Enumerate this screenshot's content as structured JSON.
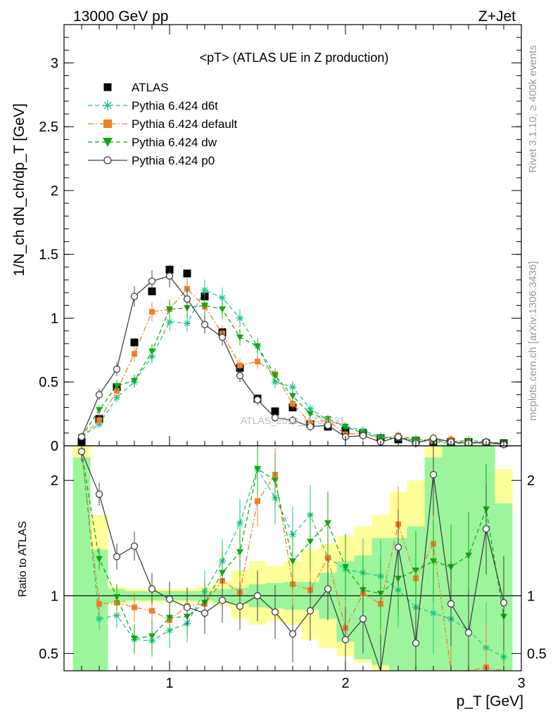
{
  "header": {
    "left_label": "13000 GeV pp",
    "right_label": "Z+Jet",
    "side_label_top": "Rivet 3.1.10, ≥ 400k events",
    "side_label_bottom": "mcplots.cern.ch [arXiv:1306.3436]",
    "watermark": "ATLAS_2019_I1736531"
  },
  "colors": {
    "atlas": "#000000",
    "d6t": "#1fc68a",
    "default": "#f07f2a",
    "dw": "#12a812",
    "p0": "#404040",
    "band_inner": "#9cf59c",
    "band_outer": "#ffff99"
  },
  "chart_data": [
    {
      "type": "scatter",
      "title": "<pT> (ATLAS UE in Z production)",
      "xlabel": "p_T [GeV]",
      "ylabel": "1/N_ch dN_ch/dp_T [GeV]",
      "xlim": [
        0.4,
        3.0
      ],
      "ylim": [
        0.0,
        3.3
      ],
      "yticks": [
        0,
        0.5,
        1,
        1.5,
        2,
        2.5,
        3
      ],
      "ytick_labels": [
        "0",
        "0.5",
        "1",
        "1.5",
        "2",
        "2.5",
        "3"
      ],
      "x": [
        0.5,
        0.6,
        0.7,
        0.8,
        0.9,
        1.0,
        1.1,
        1.2,
        1.3,
        1.4,
        1.5,
        1.6,
        1.7,
        1.8,
        1.9,
        2.0,
        2.1,
        2.2,
        2.3,
        2.4,
        2.5,
        2.6,
        2.7,
        2.8,
        2.9
      ],
      "legend": {
        "position": "top-left"
      },
      "series": [
        {
          "name": "ATLAS",
          "key": "atlas",
          "marker": "square",
          "line": "none",
          "values": [
            0.03,
            0.21,
            0.46,
            0.81,
            1.21,
            1.38,
            1.35,
            1.17,
            0.89,
            0.61,
            0.37,
            0.27,
            0.3,
            0.17,
            0.15,
            0.12,
            0.1,
            0.06,
            0.05,
            0.04,
            0.03,
            0.03,
            0.03,
            0.02,
            0.02
          ]
        },
        {
          "name": "Pythia 6.424 d6t",
          "key": "d6t",
          "marker": "star",
          "line": "dashed",
          "values": [
            0.07,
            0.17,
            0.38,
            0.5,
            0.7,
            0.97,
            0.96,
            1.22,
            1.16,
            1.0,
            0.78,
            0.5,
            0.46,
            0.29,
            0.2,
            0.15,
            0.12,
            0.07,
            0.06,
            0.04,
            0.03,
            0.02,
            0.02,
            0.02,
            0.01
          ]
        },
        {
          "name": "Pythia 6.424 default",
          "key": "default",
          "marker": "square-small",
          "line": "dashdot",
          "values": [
            0.07,
            0.2,
            0.43,
            0.72,
            1.05,
            1.07,
            1.23,
            1.09,
            0.88,
            0.63,
            0.66,
            0.56,
            0.33,
            0.18,
            0.2,
            0.09,
            0.1,
            0.06,
            0.08,
            0.05,
            0.04,
            0.05,
            0.03,
            0.01,
            0.02
          ]
        },
        {
          "name": "Pythia 6.424 dw",
          "key": "dw",
          "marker": "triangle-down",
          "line": "dashed",
          "values": [
            0.07,
            0.28,
            0.47,
            0.51,
            0.74,
            1.07,
            1.08,
            1.1,
            1.07,
            0.85,
            0.78,
            0.55,
            0.39,
            0.25,
            0.21,
            0.15,
            0.1,
            0.06,
            0.06,
            0.05,
            0.04,
            0.03,
            0.04,
            0.03,
            0.02
          ]
        },
        {
          "name": "Pythia 6.424 p0",
          "key": "p0",
          "marker": "circle-open",
          "line": "solid",
          "values": [
            0.07,
            0.4,
            0.6,
            1.17,
            1.29,
            1.33,
            1.15,
            0.95,
            0.85,
            0.55,
            0.36,
            0.22,
            0.2,
            0.15,
            0.16,
            0.07,
            0.08,
            0.03,
            0.07,
            0.02,
            0.06,
            0.03,
            0.02,
            0.03,
            0.01
          ]
        }
      ]
    },
    {
      "type": "scatter",
      "title": "",
      "xlabel": "p_T [GeV]",
      "ylabel": "Ratio to ATLAS",
      "xlim": [
        0.4,
        3.0
      ],
      "ylim": [
        0.35,
        2.3
      ],
      "xticks": [
        1,
        2,
        3
      ],
      "xtick_labels": [
        "1",
        "2",
        "3"
      ],
      "yticks": [
        0.5,
        1,
        2
      ],
      "ytick_labels": [
        "0.5",
        "1",
        "2"
      ],
      "reference_line": 1,
      "x": [
        0.5,
        0.6,
        0.7,
        0.8,
        0.9,
        1.0,
        1.1,
        1.2,
        1.3,
        1.4,
        1.5,
        1.6,
        1.7,
        1.8,
        1.9,
        2.0,
        2.1,
        2.2,
        2.3,
        2.4,
        2.5,
        2.6,
        2.7,
        2.8,
        2.9
      ],
      "bands": {
        "inner_lo": [
          0.3,
          0.3,
          0.94,
          0.96,
          0.96,
          0.96,
          0.96,
          0.96,
          0.94,
          0.93,
          0.9,
          0.89,
          0.88,
          0.88,
          0.8,
          0.6,
          0.45,
          0.4,
          0.35,
          0.35,
          0.35,
          0.3,
          0.3,
          0.3,
          0.3
        ],
        "inner_hi": [
          2.2,
          1.4,
          1.06,
          1.04,
          1.04,
          1.04,
          1.04,
          1.04,
          1.06,
          1.07,
          1.1,
          1.11,
          1.12,
          1.12,
          1.2,
          1.3,
          1.35,
          1.5,
          1.5,
          1.6,
          2.2,
          2.3,
          2.3,
          2.3,
          1.8
        ],
        "outer_lo": [
          0.3,
          0.6,
          0.92,
          0.94,
          0.94,
          0.94,
          0.94,
          0.94,
          0.92,
          0.8,
          0.75,
          0.78,
          0.75,
          0.62,
          0.55,
          0.48,
          0.42,
          0.35,
          0.3,
          0.3,
          0.3,
          0.3,
          0.3,
          0.3,
          0.3
        ],
        "outer_hi": [
          2.3,
          1.7,
          1.08,
          1.06,
          1.06,
          1.06,
          1.06,
          1.08,
          1.12,
          1.22,
          1.3,
          1.26,
          1.3,
          1.4,
          1.45,
          1.52,
          1.6,
          1.7,
          1.9,
          2.0,
          2.3,
          2.3,
          2.3,
          2.3,
          2.1
        ]
      },
      "series": [
        {
          "name": "Pythia 6.424 d6t",
          "key": "d6t",
          "values": [
            2.25,
            0.8,
            0.83,
            0.62,
            0.61,
            0.7,
            0.76,
            1.04,
            1.3,
            1.63,
            2.1,
            1.85,
            1.53,
            1.7,
            1.33,
            1.23,
            1.2,
            1.17,
            1.05,
            0.9,
            0.85,
            0.8,
            0.7,
            0.55,
            0.47
          ]
        },
        {
          "name": "Pythia 6.424 default",
          "key": "default",
          "values": [
            2.25,
            0.93,
            0.94,
            0.9,
            0.87,
            0.79,
            0.91,
            0.93,
            1.13,
            1.03,
            1.82,
            2.05,
            1.1,
            1.05,
            1.33,
            0.72,
            1.02,
            0.93,
            1.62,
            1.15,
            1.45,
            0.3,
            0.3,
            0.38,
            0.3
          ]
        },
        {
          "name": "Pythia 6.424 dw",
          "key": "dw",
          "values": [
            2.25,
            1.32,
            0.99,
            0.63,
            0.65,
            0.81,
            0.82,
            0.94,
            1.2,
            1.38,
            2.1,
            2.0,
            1.3,
            1.47,
            1.63,
            1.25,
            1.05,
            1.02,
            1.15,
            1.22,
            1.3,
            1.25,
            1.35,
            1.75,
            0.82
          ]
        },
        {
          "name": "Pythia 6.424 p0",
          "key": "p0",
          "values": [
            2.25,
            1.88,
            1.34,
            1.43,
            1.06,
            0.97,
            0.9,
            0.85,
            0.96,
            0.91,
            1.0,
            0.86,
            0.67,
            0.87,
            1.06,
            0.62,
            0.8,
            0.3,
            1.42,
            0.59,
            2.05,
            0.93,
            0.68,
            1.58,
            0.94
          ]
        }
      ]
    }
  ]
}
